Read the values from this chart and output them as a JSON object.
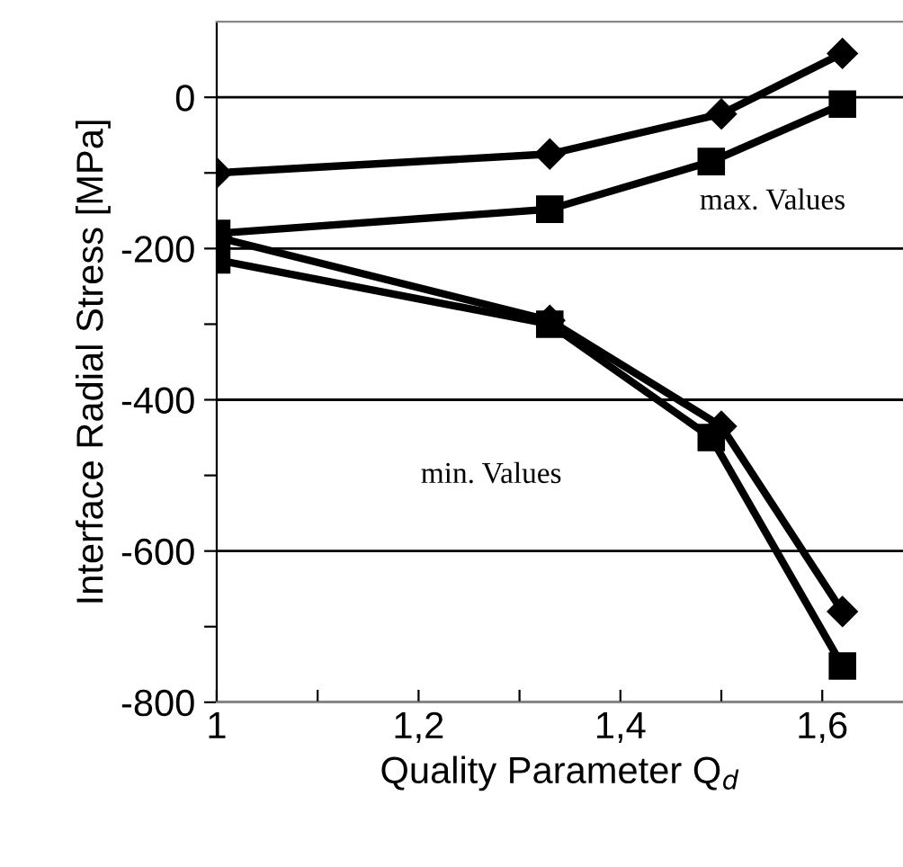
{
  "chart_data": {
    "type": "line",
    "xlabel": "Quality Parameter Q$_{d}$",
    "ylabel": "Interface Radial Stress [MPa]",
    "series": [
      {
        "color": "#000000",
        "marker": "diamond",
        "x": [
          1,
          1.33,
          1.5,
          1.62
        ],
        "values": [
          -100,
          -75,
          -22,
          58
        ]
      },
      {
        "color": "#000000",
        "marker": "square",
        "x": [
          1,
          1.33,
          1.49,
          1.62
        ],
        "values": [
          -180,
          -148,
          -85,
          -9
        ]
      },
      {
        "color": "#000000",
        "marker": "diamond",
        "x": [
          1,
          1.33,
          1.5,
          1.62
        ],
        "values": [
          -185,
          -295,
          -435,
          -680
        ]
      },
      {
        "color": "#000000",
        "marker": "square",
        "x": [
          1,
          1.33,
          1.49,
          1.62
        ],
        "values": [
          -215,
          -300,
          -450,
          -752
        ]
      }
    ],
    "xlim": [
      1,
      1.68
    ],
    "ylim": [
      -800,
      100
    ],
    "xticks": [
      1,
      {
        "value": 1.1,
        "label": null
      },
      {
        "value": 1.2,
        "label": "1,2"
      },
      {
        "value": 1.3,
        "label": null
      },
      {
        "value": 1.4,
        "label": "1,4"
      },
      {
        "value": 1.5,
        "label": null
      },
      {
        "value": 1.6,
        "label": "1,6"
      }
    ],
    "yticks": [
      -800,
      {
        "value": -700,
        "label": null
      },
      -600,
      {
        "value": -500,
        "label": null
      },
      -400,
      {
        "value": -300,
        "label": null
      },
      -200,
      {
        "value": -100,
        "label": null
      },
      0
    ],
    "grid": "y",
    "legend": false,
    "line_style": "solid",
    "annotations": [
      "max. Values",
      "min. Values"
    ]
  }
}
